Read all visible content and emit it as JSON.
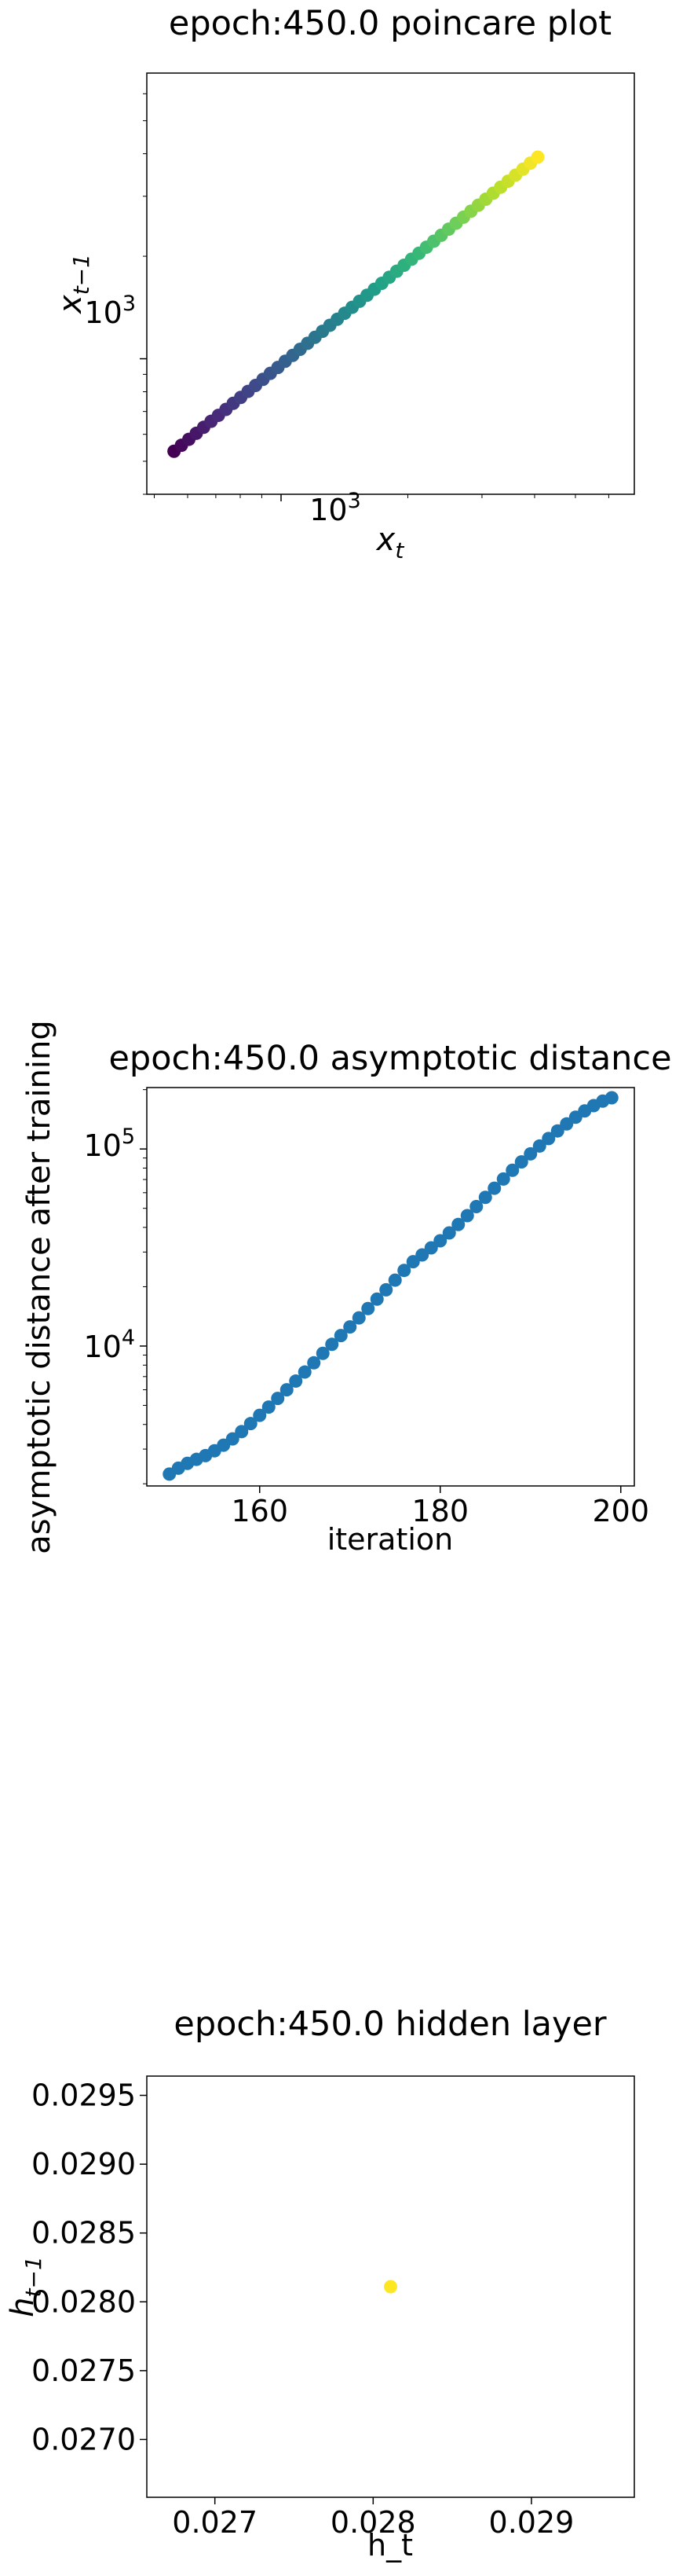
{
  "chart_data": [
    {
      "type": "scatter",
      "title": "epoch:450.0 poincare plot",
      "xlabel": "x_t",
      "ylabel": "x_{t-1}",
      "xscale": "log",
      "yscale": "log",
      "xlim": [
        480,
        6900
      ],
      "ylim": [
        400,
        6900
      ],
      "xtick_label": "10^3",
      "ytick_label": "10^3",
      "colormap": "viridis",
      "colormap_stops": [
        "#440154",
        "#482878",
        "#3e4989",
        "#31688e",
        "#26828e",
        "#1f9e89",
        "#35b779",
        "#6ece58",
        "#b5de2b",
        "#fde725"
      ],
      "x": [
        557,
        580,
        604,
        629,
        655,
        682,
        710,
        740,
        770,
        802,
        835,
        870,
        906,
        943,
        983,
        1023,
        1066,
        1110,
        1156,
        1204,
        1254,
        1306,
        1360,
        1416,
        1475,
        1536,
        1600,
        1666,
        1735,
        1807,
        1882,
        1960,
        2041,
        2126,
        2214,
        2305,
        2401,
        2500,
        2604,
        2712,
        2824,
        2941,
        3063,
        3190,
        3322,
        3460,
        3603,
        3753,
        3908,
        4070
      ],
      "y": [
        535,
        557,
        580,
        604,
        629,
        655,
        682,
        710,
        740,
        770,
        802,
        835,
        870,
        906,
        943,
        983,
        1023,
        1066,
        1110,
        1156,
        1204,
        1254,
        1306,
        1360,
        1416,
        1475,
        1536,
        1600,
        1666,
        1735,
        1807,
        1882,
        1960,
        2041,
        2126,
        2214,
        2305,
        2401,
        2500,
        2604,
        2712,
        2824,
        2941,
        3063,
        3190,
        3322,
        3460,
        3603,
        3753,
        3908
      ],
      "grid": false
    },
    {
      "type": "scatter",
      "title": "epoch:450.0 asymptotic distance",
      "xlabel": "iteration",
      "ylabel": "asymptotic distance after training",
      "yscale": "log",
      "xlim": [
        147.5,
        201.5
      ],
      "ylim": [
        1950,
        205000
      ],
      "xticks": [
        160,
        180,
        200
      ],
      "ytick_labels": [
        "10^4",
        "10^5"
      ],
      "color": "#1f77b4",
      "x": [
        150,
        151,
        152,
        153,
        154,
        155,
        156,
        157,
        158,
        159,
        160,
        161,
        162,
        163,
        164,
        165,
        166,
        167,
        168,
        169,
        170,
        171,
        172,
        173,
        174,
        175,
        176,
        177,
        178,
        179,
        180,
        181,
        182,
        183,
        184,
        185,
        186,
        187,
        188,
        189,
        190,
        191,
        192,
        193,
        194,
        195,
        196,
        197,
        198,
        199
      ],
      "y": [
        2240,
        2400,
        2540,
        2660,
        2780,
        2940,
        3140,
        3380,
        3680,
        4040,
        4450,
        4900,
        5420,
        6000,
        6640,
        7380,
        8220,
        9180,
        10200,
        11300,
        12500,
        13900,
        15500,
        17300,
        19300,
        21600,
        24200,
        26800,
        29000,
        31500,
        34200,
        37500,
        41400,
        45900,
        51000,
        56800,
        63200,
        70400,
        78000,
        86000,
        94500,
        103500,
        113000,
        123500,
        134000,
        145000,
        156000,
        166000,
        175000,
        182000
      ],
      "grid": false
    },
    {
      "type": "scatter",
      "title": "epoch:450.0 hidden layer",
      "xlabel": "h_t",
      "ylabel": "h_{t-1}",
      "xlim": [
        0.02657,
        0.02965
      ],
      "ylim": [
        0.02658,
        0.02964
      ],
      "xticks": [
        0.027,
        0.028,
        0.029
      ],
      "yticks": [
        0.027,
        0.0275,
        0.028,
        0.0285,
        0.029,
        0.0295
      ],
      "ytick_labels": [
        "0.0270",
        "0.0275",
        "0.0280",
        "0.0285",
        "0.0290",
        "0.0295"
      ],
      "color": "#fde725",
      "x": [
        0.02811
      ],
      "y": [
        0.02811
      ],
      "grid": false
    }
  ]
}
